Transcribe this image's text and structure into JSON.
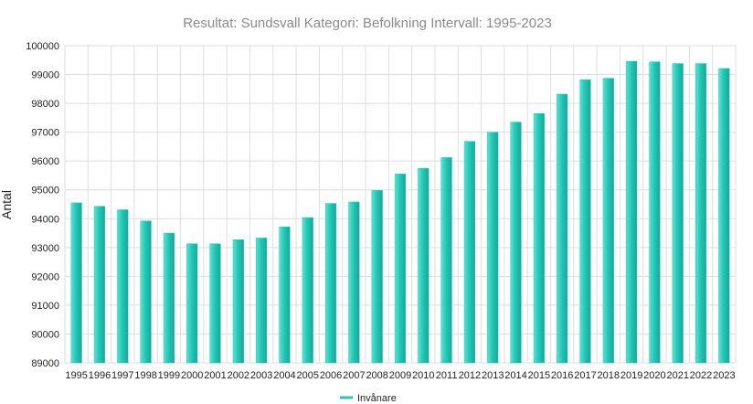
{
  "chart_data": {
    "type": "bar",
    "title": "Resultat: Sundsvall Kategori: Befolkning Intervall: 1995-2023",
    "ylabel": "Antal",
    "xlabel": "",
    "ylim": [
      89000,
      100000
    ],
    "yticks": [
      89000,
      90000,
      91000,
      92000,
      93000,
      94000,
      95000,
      96000,
      97000,
      98000,
      99000,
      100000
    ],
    "grid": true,
    "legend_position": "bottom",
    "categories": [
      "1995",
      "1996",
      "1997",
      "1998",
      "1999",
      "2000",
      "2001",
      "2002",
      "2003",
      "2004",
      "2005",
      "2006",
      "2007",
      "2008",
      "2009",
      "2010",
      "2011",
      "2012",
      "2013",
      "2014",
      "2015",
      "2016",
      "2017",
      "2018",
      "2019",
      "2020",
      "2021",
      "2022",
      "2023"
    ],
    "series": [
      {
        "name": "Invånare",
        "color": "#20c9b7",
        "values": [
          94550,
          94430,
          94310,
          93920,
          93500,
          93130,
          93130,
          93270,
          93330,
          93720,
          94040,
          94530,
          94580,
          94980,
          95550,
          95750,
          96120,
          96680,
          97000,
          97350,
          97650,
          98320,
          98820,
          98870,
          99460,
          99440,
          99380,
          99380,
          99210
        ]
      }
    ]
  }
}
